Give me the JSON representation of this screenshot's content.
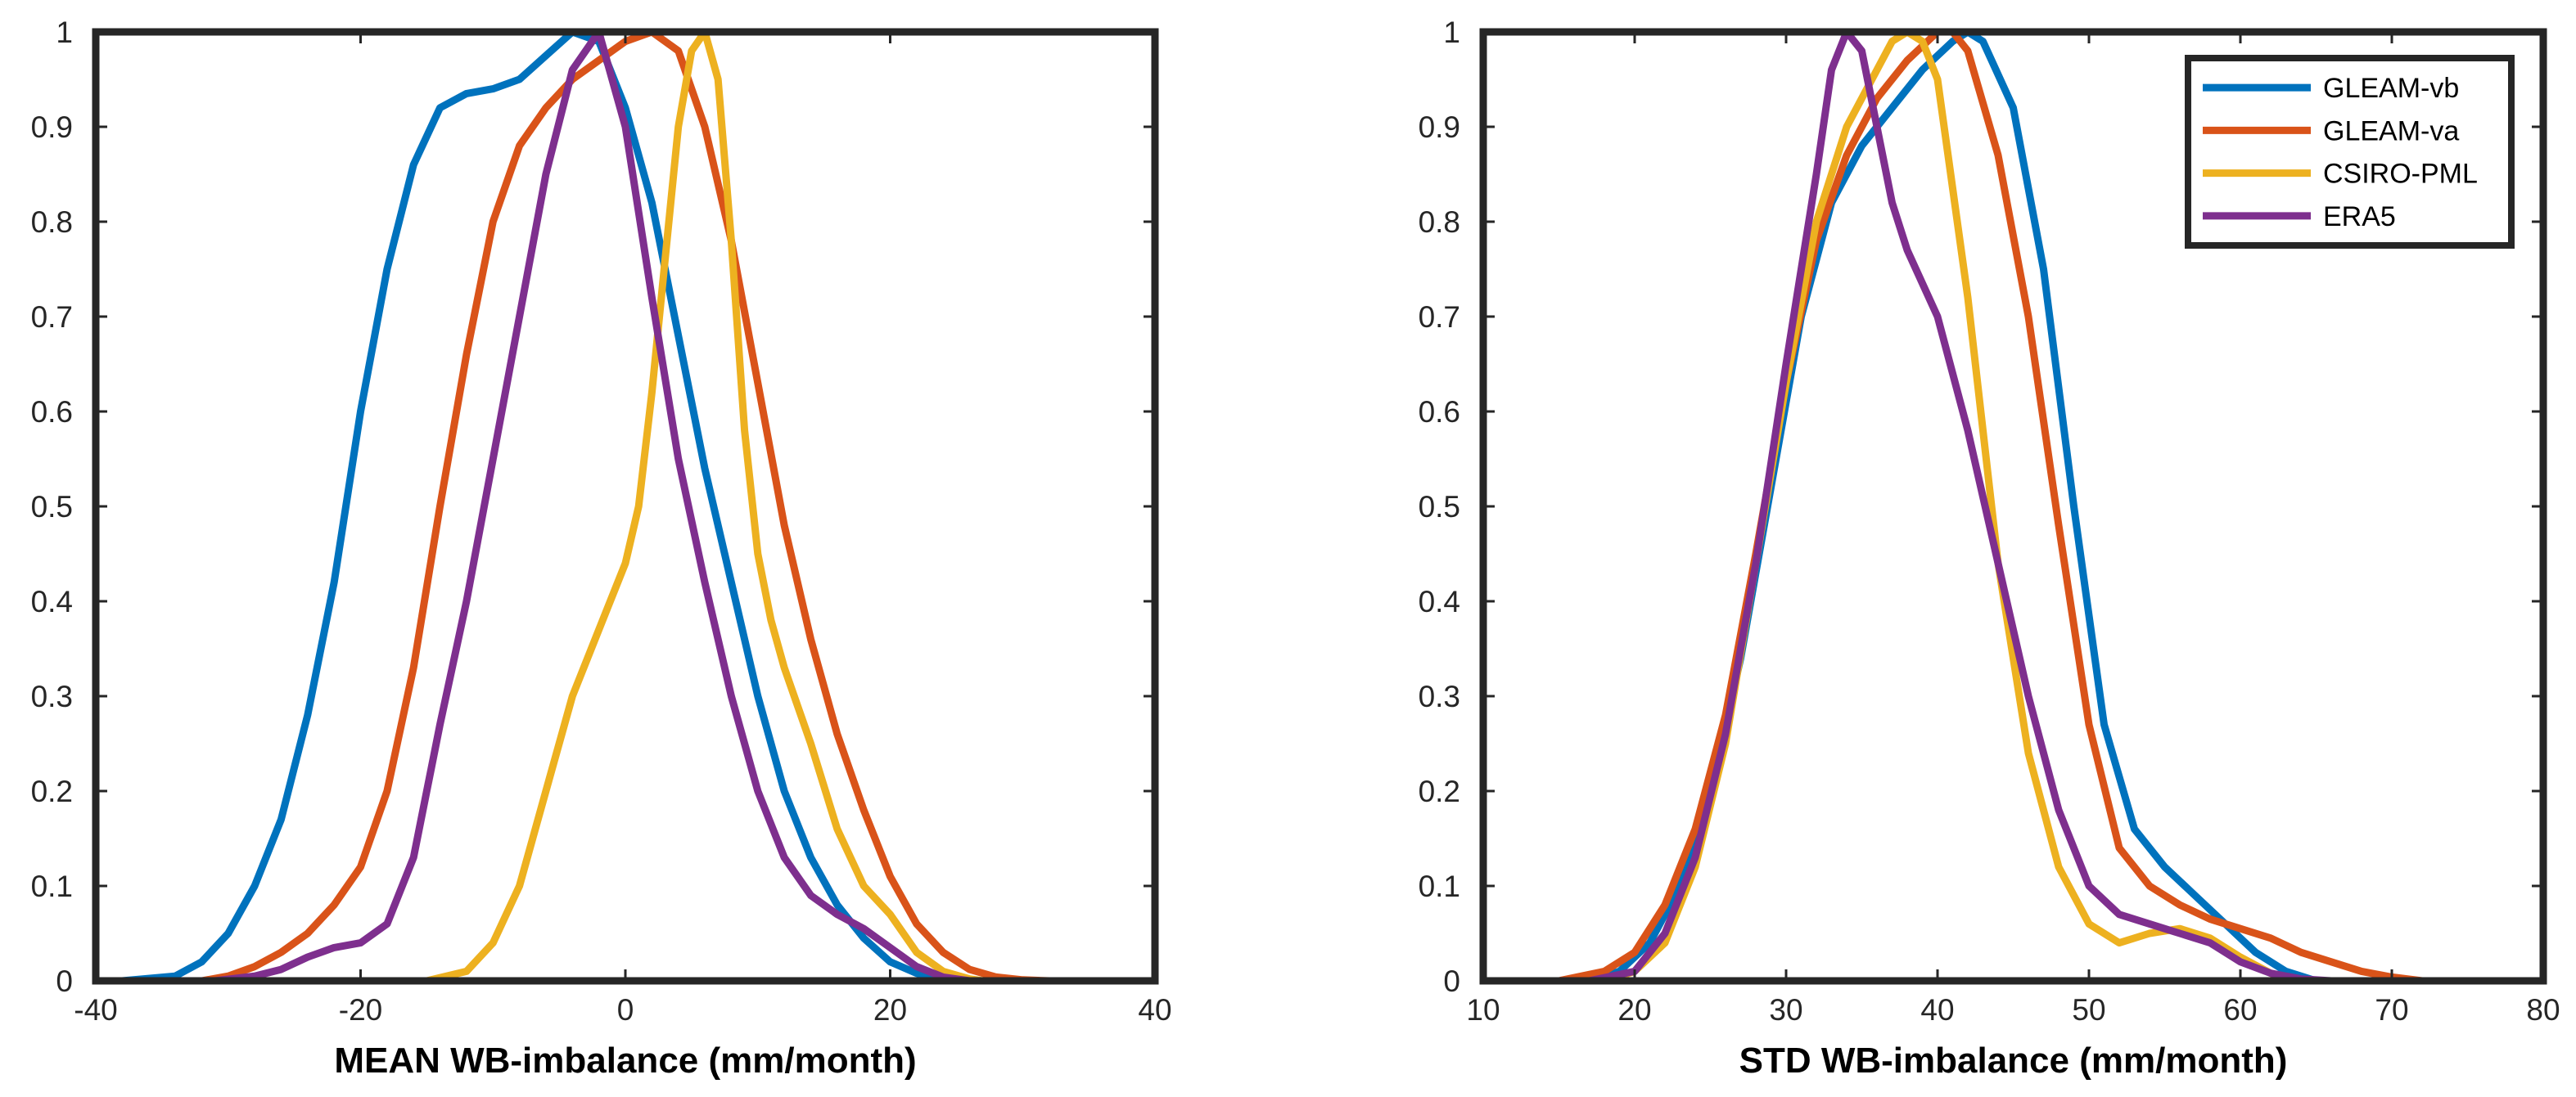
{
  "colors": {
    "GLEAM-vb": "#0072BD",
    "GLEAM-va": "#D95319",
    "CSIRO-PML": "#EDB120",
    "ERA5": "#7E2F8E"
  },
  "chart_data": [
    {
      "type": "line",
      "title": "",
      "xlabel": "MEAN WB-imbalance (mm/month)",
      "ylabel": "",
      "xlim": [
        -40,
        40
      ],
      "ylim": [
        0,
        1
      ],
      "xticks": [
        "-40",
        "-20",
        "0",
        "20",
        "40"
      ],
      "xtick_values": [
        -40,
        -20,
        0,
        20,
        40
      ],
      "yticks": [
        "0",
        "0.1",
        "0.2",
        "0.3",
        "0.4",
        "0.5",
        "0.6",
        "0.7",
        "0.8",
        "0.9",
        "1"
      ],
      "ytick_values": [
        0,
        0.1,
        0.2,
        0.3,
        0.4,
        0.5,
        0.6,
        0.7,
        0.8,
        0.9,
        1
      ],
      "legend": null,
      "series": [
        {
          "name": "GLEAM-vb",
          "x": [
            -38,
            -34,
            -32,
            -30,
            -28,
            -26,
            -24,
            -22,
            -20,
            -18,
            -16,
            -14,
            -12,
            -10,
            -8,
            -6,
            -4,
            -2,
            0,
            2,
            4,
            6,
            8,
            10,
            12,
            14,
            16,
            18,
            20,
            22,
            24,
            26
          ],
          "y": [
            0,
            0.005,
            0.02,
            0.05,
            0.1,
            0.17,
            0.28,
            0.42,
            0.6,
            0.75,
            0.86,
            0.92,
            0.935,
            0.94,
            0.95,
            0.975,
            1.0,
            0.99,
            0.92,
            0.82,
            0.68,
            0.54,
            0.42,
            0.3,
            0.2,
            0.13,
            0.08,
            0.045,
            0.02,
            0.008,
            0.002,
            0
          ]
        },
        {
          "name": "GLEAM-va",
          "x": [
            -32,
            -30,
            -28,
            -26,
            -24,
            -22,
            -20,
            -18,
            -16,
            -14,
            -12,
            -10,
            -8,
            -6,
            -4,
            -2,
            0,
            2,
            4,
            6,
            8,
            10,
            12,
            14,
            16,
            18,
            20,
            22,
            24,
            26,
            28,
            30,
            32
          ],
          "y": [
            0,
            0.005,
            0.015,
            0.03,
            0.05,
            0.08,
            0.12,
            0.2,
            0.33,
            0.5,
            0.66,
            0.8,
            0.88,
            0.92,
            0.95,
            0.97,
            0.99,
            1.0,
            0.98,
            0.9,
            0.78,
            0.63,
            0.48,
            0.36,
            0.26,
            0.18,
            0.11,
            0.06,
            0.03,
            0.012,
            0.004,
            0.001,
            0
          ]
        },
        {
          "name": "CSIRO-PML",
          "x": [
            -15,
            -12,
            -10,
            -8,
            -6,
            -4,
            -2,
            0,
            1,
            2,
            3,
            4,
            5,
            6,
            7,
            8,
            9,
            10,
            11,
            12,
            14,
            16,
            18,
            20,
            22,
            24,
            26,
            27
          ],
          "y": [
            0,
            0.01,
            0.04,
            0.1,
            0.2,
            0.3,
            0.37,
            0.44,
            0.5,
            0.62,
            0.76,
            0.9,
            0.98,
            1.0,
            0.95,
            0.78,
            0.58,
            0.45,
            0.38,
            0.33,
            0.25,
            0.16,
            0.1,
            0.07,
            0.03,
            0.01,
            0.002,
            0
          ]
        },
        {
          "name": "ERA5",
          "x": [
            -31,
            -28,
            -26,
            -24,
            -22,
            -20,
            -18,
            -16,
            -14,
            -12,
            -10,
            -8,
            -6,
            -4,
            -2,
            0,
            2,
            4,
            6,
            8,
            10,
            12,
            14,
            16,
            18,
            20,
            22,
            24,
            26
          ],
          "y": [
            0,
            0.005,
            0.012,
            0.025,
            0.035,
            0.04,
            0.06,
            0.13,
            0.27,
            0.4,
            0.55,
            0.7,
            0.85,
            0.96,
            1.0,
            0.9,
            0.72,
            0.55,
            0.42,
            0.3,
            0.2,
            0.13,
            0.09,
            0.07,
            0.055,
            0.035,
            0.015,
            0.004,
            0
          ]
        }
      ]
    },
    {
      "type": "line",
      "title": "",
      "xlabel": "STD WB-imbalance (mm/month)",
      "ylabel": "",
      "xlim": [
        10,
        80
      ],
      "ylim": [
        0,
        1
      ],
      "xticks": [
        "10",
        "20",
        "30",
        "40",
        "50",
        "60",
        "70",
        "80"
      ],
      "xtick_values": [
        10,
        20,
        30,
        40,
        50,
        60,
        70,
        80
      ],
      "yticks": [
        "0",
        "0.1",
        "0.2",
        "0.3",
        "0.4",
        "0.5",
        "0.6",
        "0.7",
        "0.8",
        "0.9",
        "1"
      ],
      "ytick_values": [
        0,
        0.1,
        0.2,
        0.3,
        0.4,
        0.5,
        0.6,
        0.7,
        0.8,
        0.9,
        1
      ],
      "legend": {
        "location": "top-right",
        "entries": [
          "GLEAM-vb",
          "GLEAM-va",
          "CSIRO-PML",
          "ERA5"
        ]
      },
      "series": [
        {
          "name": "GLEAM-vb",
          "x": [
            17,
            19,
            21,
            23,
            25,
            27,
            29,
            31,
            33,
            35,
            37,
            39,
            41,
            42,
            43,
            45,
            47,
            49,
            51,
            53,
            55,
            57,
            59,
            61,
            63,
            65
          ],
          "y": [
            0,
            0.01,
            0.04,
            0.1,
            0.2,
            0.34,
            0.52,
            0.7,
            0.82,
            0.88,
            0.92,
            0.96,
            0.99,
            1.0,
            0.99,
            0.92,
            0.75,
            0.5,
            0.27,
            0.16,
            0.12,
            0.09,
            0.06,
            0.03,
            0.01,
            0
          ]
        },
        {
          "name": "GLEAM-va",
          "x": [
            15,
            18,
            20,
            22,
            24,
            26,
            28,
            30,
            32,
            34,
            36,
            38,
            40,
            41,
            42,
            44,
            46,
            48,
            50,
            52,
            54,
            56,
            58,
            60,
            62,
            64,
            66,
            68,
            70,
            72
          ],
          "y": [
            0,
            0.01,
            0.03,
            0.08,
            0.16,
            0.28,
            0.45,
            0.63,
            0.78,
            0.87,
            0.93,
            0.97,
            1.0,
            1.0,
            0.98,
            0.87,
            0.7,
            0.48,
            0.27,
            0.14,
            0.1,
            0.08,
            0.065,
            0.055,
            0.045,
            0.03,
            0.02,
            0.01,
            0.004,
            0
          ]
        },
        {
          "name": "CSIRO-PML",
          "x": [
            18,
            20,
            22,
            24,
            26,
            28,
            30,
            32,
            34,
            36,
            37,
            38,
            39,
            40,
            42,
            44,
            46,
            48,
            50,
            52,
            54,
            56,
            58,
            60,
            62,
            64
          ],
          "y": [
            0,
            0.01,
            0.04,
            0.12,
            0.25,
            0.44,
            0.63,
            0.8,
            0.9,
            0.96,
            0.99,
            1.0,
            0.99,
            0.95,
            0.72,
            0.44,
            0.24,
            0.12,
            0.06,
            0.04,
            0.05,
            0.055,
            0.045,
            0.025,
            0.008,
            0
          ]
        },
        {
          "name": "ERA5",
          "x": [
            17,
            20,
            22,
            24,
            26,
            28,
            30,
            32,
            33,
            34,
            35,
            36,
            37,
            38,
            40,
            42,
            44,
            46,
            48,
            50,
            52,
            54,
            56,
            58,
            60,
            62,
            64,
            66
          ],
          "y": [
            0,
            0.01,
            0.05,
            0.13,
            0.26,
            0.44,
            0.65,
            0.85,
            0.96,
            1.0,
            0.98,
            0.9,
            0.82,
            0.77,
            0.7,
            0.58,
            0.44,
            0.3,
            0.18,
            0.1,
            0.07,
            0.06,
            0.05,
            0.04,
            0.02,
            0.008,
            0.002,
            0
          ]
        }
      ]
    }
  ]
}
